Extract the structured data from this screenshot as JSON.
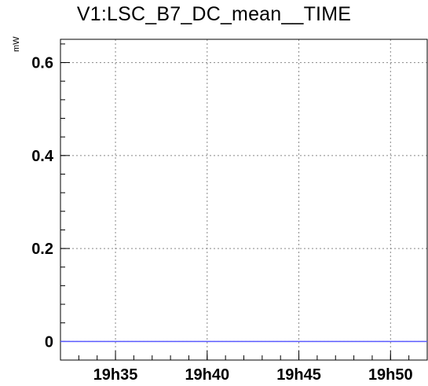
{
  "chart_data": {
    "type": "line",
    "title": "V1:LSC_B7_DC_mean__TIME",
    "ylabel": "mW",
    "xlabel": "",
    "x_tick_labels": [
      "19h35",
      "19h40",
      "19h45",
      "19h50"
    ],
    "x_tick_times": [
      "19:35",
      "19:40",
      "19:45",
      "19:50"
    ],
    "xlim": [
      "19:32",
      "19:52"
    ],
    "y_tick_labels": [
      "0",
      "0.2",
      "0.4",
      "0.6"
    ],
    "y_ticks": [
      0,
      0.2,
      0.4,
      0.6
    ],
    "ylim": [
      -0.04,
      0.65
    ],
    "grid": true,
    "series": [
      {
        "x": [
          "19:32",
          "19:52"
        ],
        "values": [
          0,
          0
        ],
        "color": "#5b5bff"
      }
    ]
  }
}
